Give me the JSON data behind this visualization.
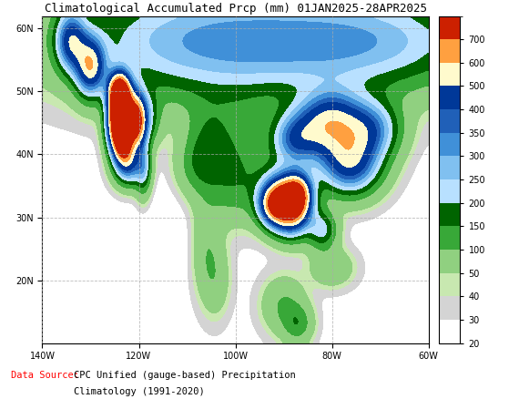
{
  "title": "Climatological Accumulated Prcp (mm) 01JAN2025-28APR2025",
  "title_fontsize": 9,
  "data_source_label": "Data Source:",
  "data_source_line2": "CPC Unified (gauge-based) Precipitation",
  "data_source_line3": "Climatology (1991-2020)",
  "colorbar_levels": [
    20,
    30,
    40,
    50,
    100,
    150,
    200,
    250,
    300,
    350,
    400,
    500,
    600,
    700
  ],
  "cmap_colors": [
    "#ffffff",
    "#d4d4d4",
    "#c8e8b0",
    "#90d080",
    "#38a838",
    "#006400",
    "#b8e0ff",
    "#80c0f0",
    "#4090d8",
    "#2060b8",
    "#003898",
    "#fffacd",
    "#ffa040",
    "#cc2000"
  ],
  "extent_lon_min": -140,
  "extent_lon_max": -60,
  "extent_lat_min": 10,
  "extent_lat_max": 62,
  "lon_ticks": [
    -140,
    -120,
    -100,
    -80,
    -60
  ],
  "lat_ticks": [
    20,
    30,
    40,
    50,
    60
  ],
  "background_color": "#ffffff",
  "grid_color": "#aaaaaa",
  "figsize": [
    5.81,
    4.38
  ],
  "dpi": 100
}
